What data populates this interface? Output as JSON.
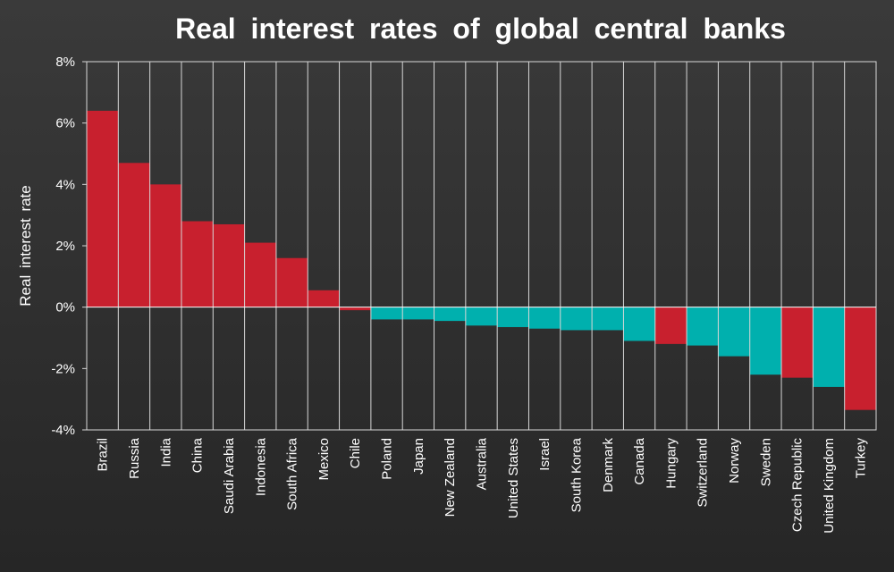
{
  "chart_data": {
    "type": "bar",
    "title": "Real interest rates of global central banks",
    "ylabel": "Real interest rate",
    "xlabel": "",
    "ylim": [
      -4,
      8
    ],
    "yticks": [
      "-4%",
      "-2%",
      "0%",
      "2%",
      "4%",
      "6%",
      "8%"
    ],
    "grid": "on (vertical lines between bars, horizontal zero line)",
    "legend": "none",
    "categories": [
      "Brazil",
      "Russia",
      "India",
      "China",
      "Saudi Arabia",
      "Indonesia",
      "South Africa",
      "Mexico",
      "Chile",
      "Poland",
      "Japan",
      "New Zealand",
      "Australia",
      "United States",
      "Israel",
      "South Korea",
      "Denmark",
      "Canada",
      "Hungary",
      "Switzerland",
      "Norway",
      "Sweden",
      "Czech Republic",
      "United Kingdom",
      "Turkey"
    ],
    "values": [
      6.4,
      4.7,
      4.0,
      2.8,
      2.7,
      2.1,
      1.6,
      0.55,
      -0.1,
      -0.4,
      -0.4,
      -0.45,
      -0.6,
      -0.65,
      -0.7,
      -0.75,
      -0.75,
      -1.1,
      -1.2,
      -1.25,
      -1.6,
      -2.2,
      -2.3,
      -2.6,
      -3.35
    ],
    "bar_colors": [
      "#c8202e",
      "#c8202e",
      "#c8202e",
      "#c8202e",
      "#c8202e",
      "#c8202e",
      "#c8202e",
      "#c8202e",
      "#c8202e",
      "#00b0ae",
      "#00b0ae",
      "#00b0ae",
      "#00b0ae",
      "#00b0ae",
      "#00b0ae",
      "#00b0ae",
      "#00b0ae",
      "#00b0ae",
      "#c8202e",
      "#00b0ae",
      "#00b0ae",
      "#00b0ae",
      "#c8202e",
      "#00b0ae",
      "#c8202e"
    ],
    "colors": {
      "positive_red": "#c8202e",
      "cyan": "#00b0ae",
      "background": "#333333",
      "grid": "#ffffff"
    }
  }
}
